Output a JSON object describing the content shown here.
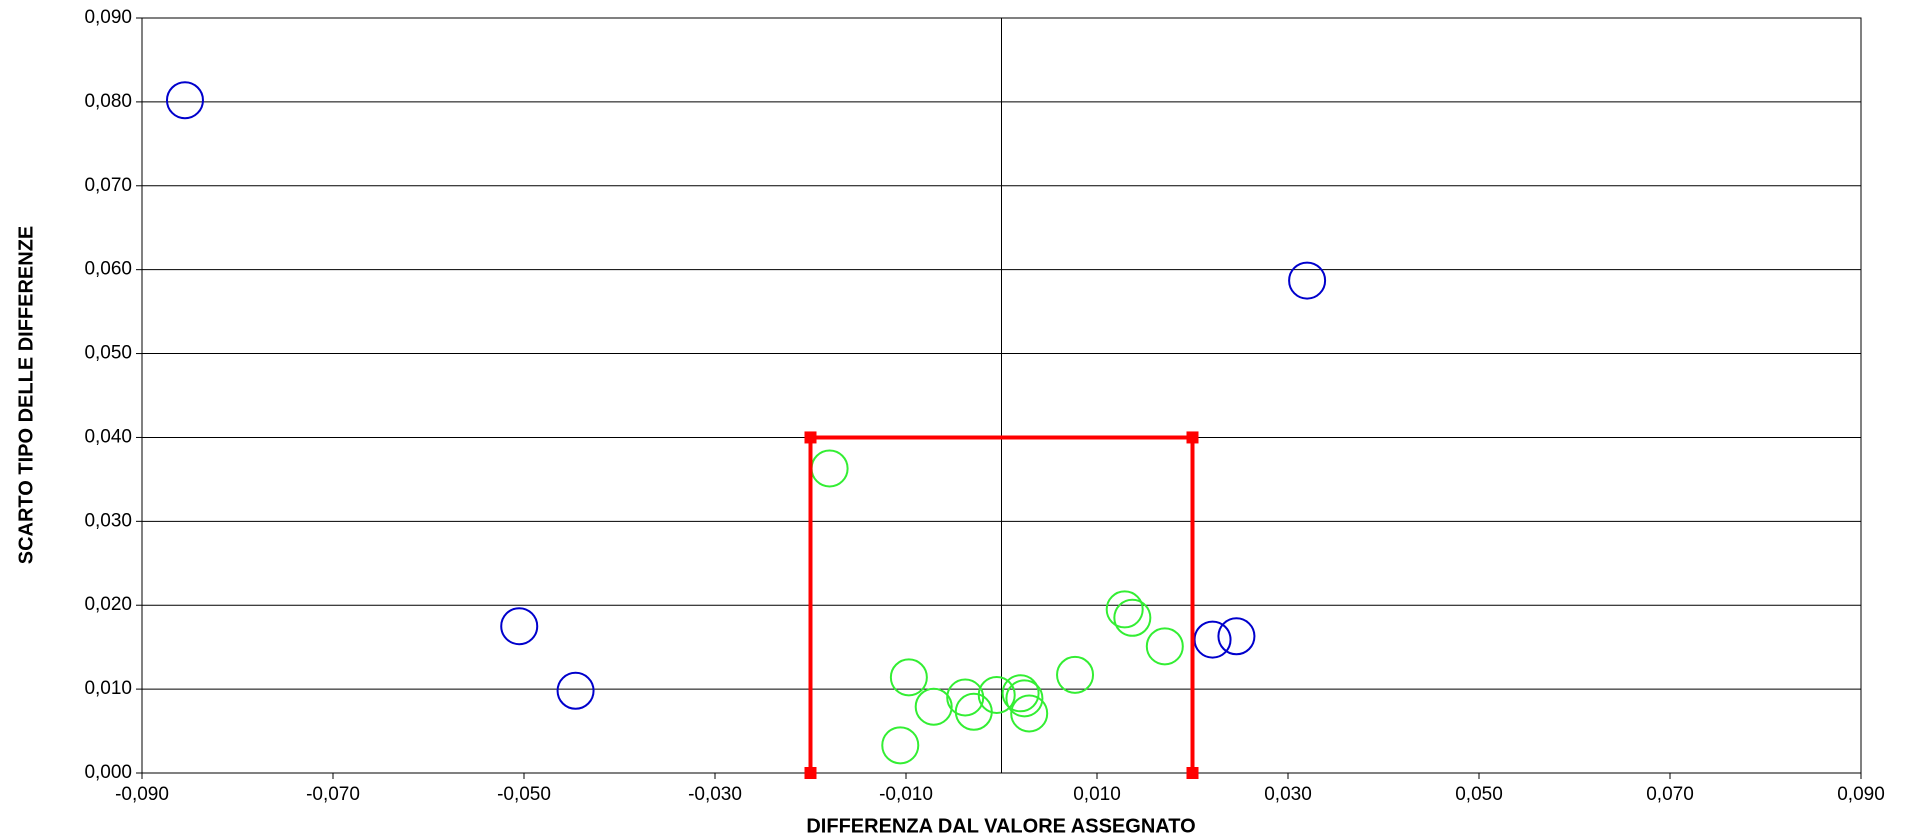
{
  "chart_data": {
    "type": "scatter",
    "x_label": "DIFFERENZA DAL VALORE ASSEGNATO",
    "y_label": "SCARTO TIPO DELLE DIFFERENZE",
    "xlim": [
      -0.09,
      0.09
    ],
    "ylim": [
      0,
      0.09
    ],
    "xticks": [
      {
        "value": -0.09,
        "label": "-0,090"
      },
      {
        "value": -0.07,
        "label": "-0,070"
      },
      {
        "value": -0.05,
        "label": "-0,050"
      },
      {
        "value": -0.03,
        "label": "-0,030"
      },
      {
        "value": -0.01,
        "label": "-0,010"
      },
      {
        "value": 0.01,
        "label": "0,010"
      },
      {
        "value": 0.03,
        "label": "0,030"
      },
      {
        "value": 0.05,
        "label": "0,050"
      },
      {
        "value": 0.07,
        "label": "0,070"
      },
      {
        "value": 0.09,
        "label": "0,090"
      }
    ],
    "yticks": [
      {
        "value": 0,
        "label": "0,000"
      },
      {
        "value": 0.01,
        "label": "0,010"
      },
      {
        "value": 0.02,
        "label": "0,020"
      },
      {
        "value": 0.03,
        "label": "0,030"
      },
      {
        "value": 0.04,
        "label": "0,040"
      },
      {
        "value": 0.05,
        "label": "0,050"
      },
      {
        "value": 0.06,
        "label": "0,060"
      },
      {
        "value": 0.07,
        "label": "0,070"
      },
      {
        "value": 0.08,
        "label": "0,080"
      },
      {
        "value": 0.09,
        "label": "0,090"
      }
    ],
    "grid": true,
    "series": [
      {
        "color": "#0000cc",
        "marker": "circle",
        "x": [
          -0.0855,
          0.032,
          -0.0505,
          -0.0446,
          0.0221,
          0.0246
        ],
        "values": [
          0.0802,
          0.0587,
          0.0175,
          0.0098,
          0.0159,
          0.0163
        ]
      },
      {
        "color": "#33ee33",
        "marker": "circle",
        "x": [
          -0.018,
          -0.0097,
          -0.0106,
          -0.0071,
          -0.0038,
          -0.0029,
          -0.0005,
          0.002,
          0.0024,
          0.0029,
          0.0077,
          0.0129,
          0.0137,
          0.0171
        ],
        "values": [
          0.0363,
          0.0114,
          0.0033,
          0.0079,
          0.009,
          0.0073,
          0.0093,
          0.0095,
          0.0089,
          0.0071,
          0.0117,
          0.0195,
          0.0185,
          0.0151
        ]
      },
      {
        "color": "#ff0000",
        "marker": "square",
        "line": true,
        "x": [
          -0.02,
          -0.02,
          0.02,
          0.02
        ],
        "values": [
          0,
          0.04,
          0.04,
          0
        ]
      }
    ]
  }
}
